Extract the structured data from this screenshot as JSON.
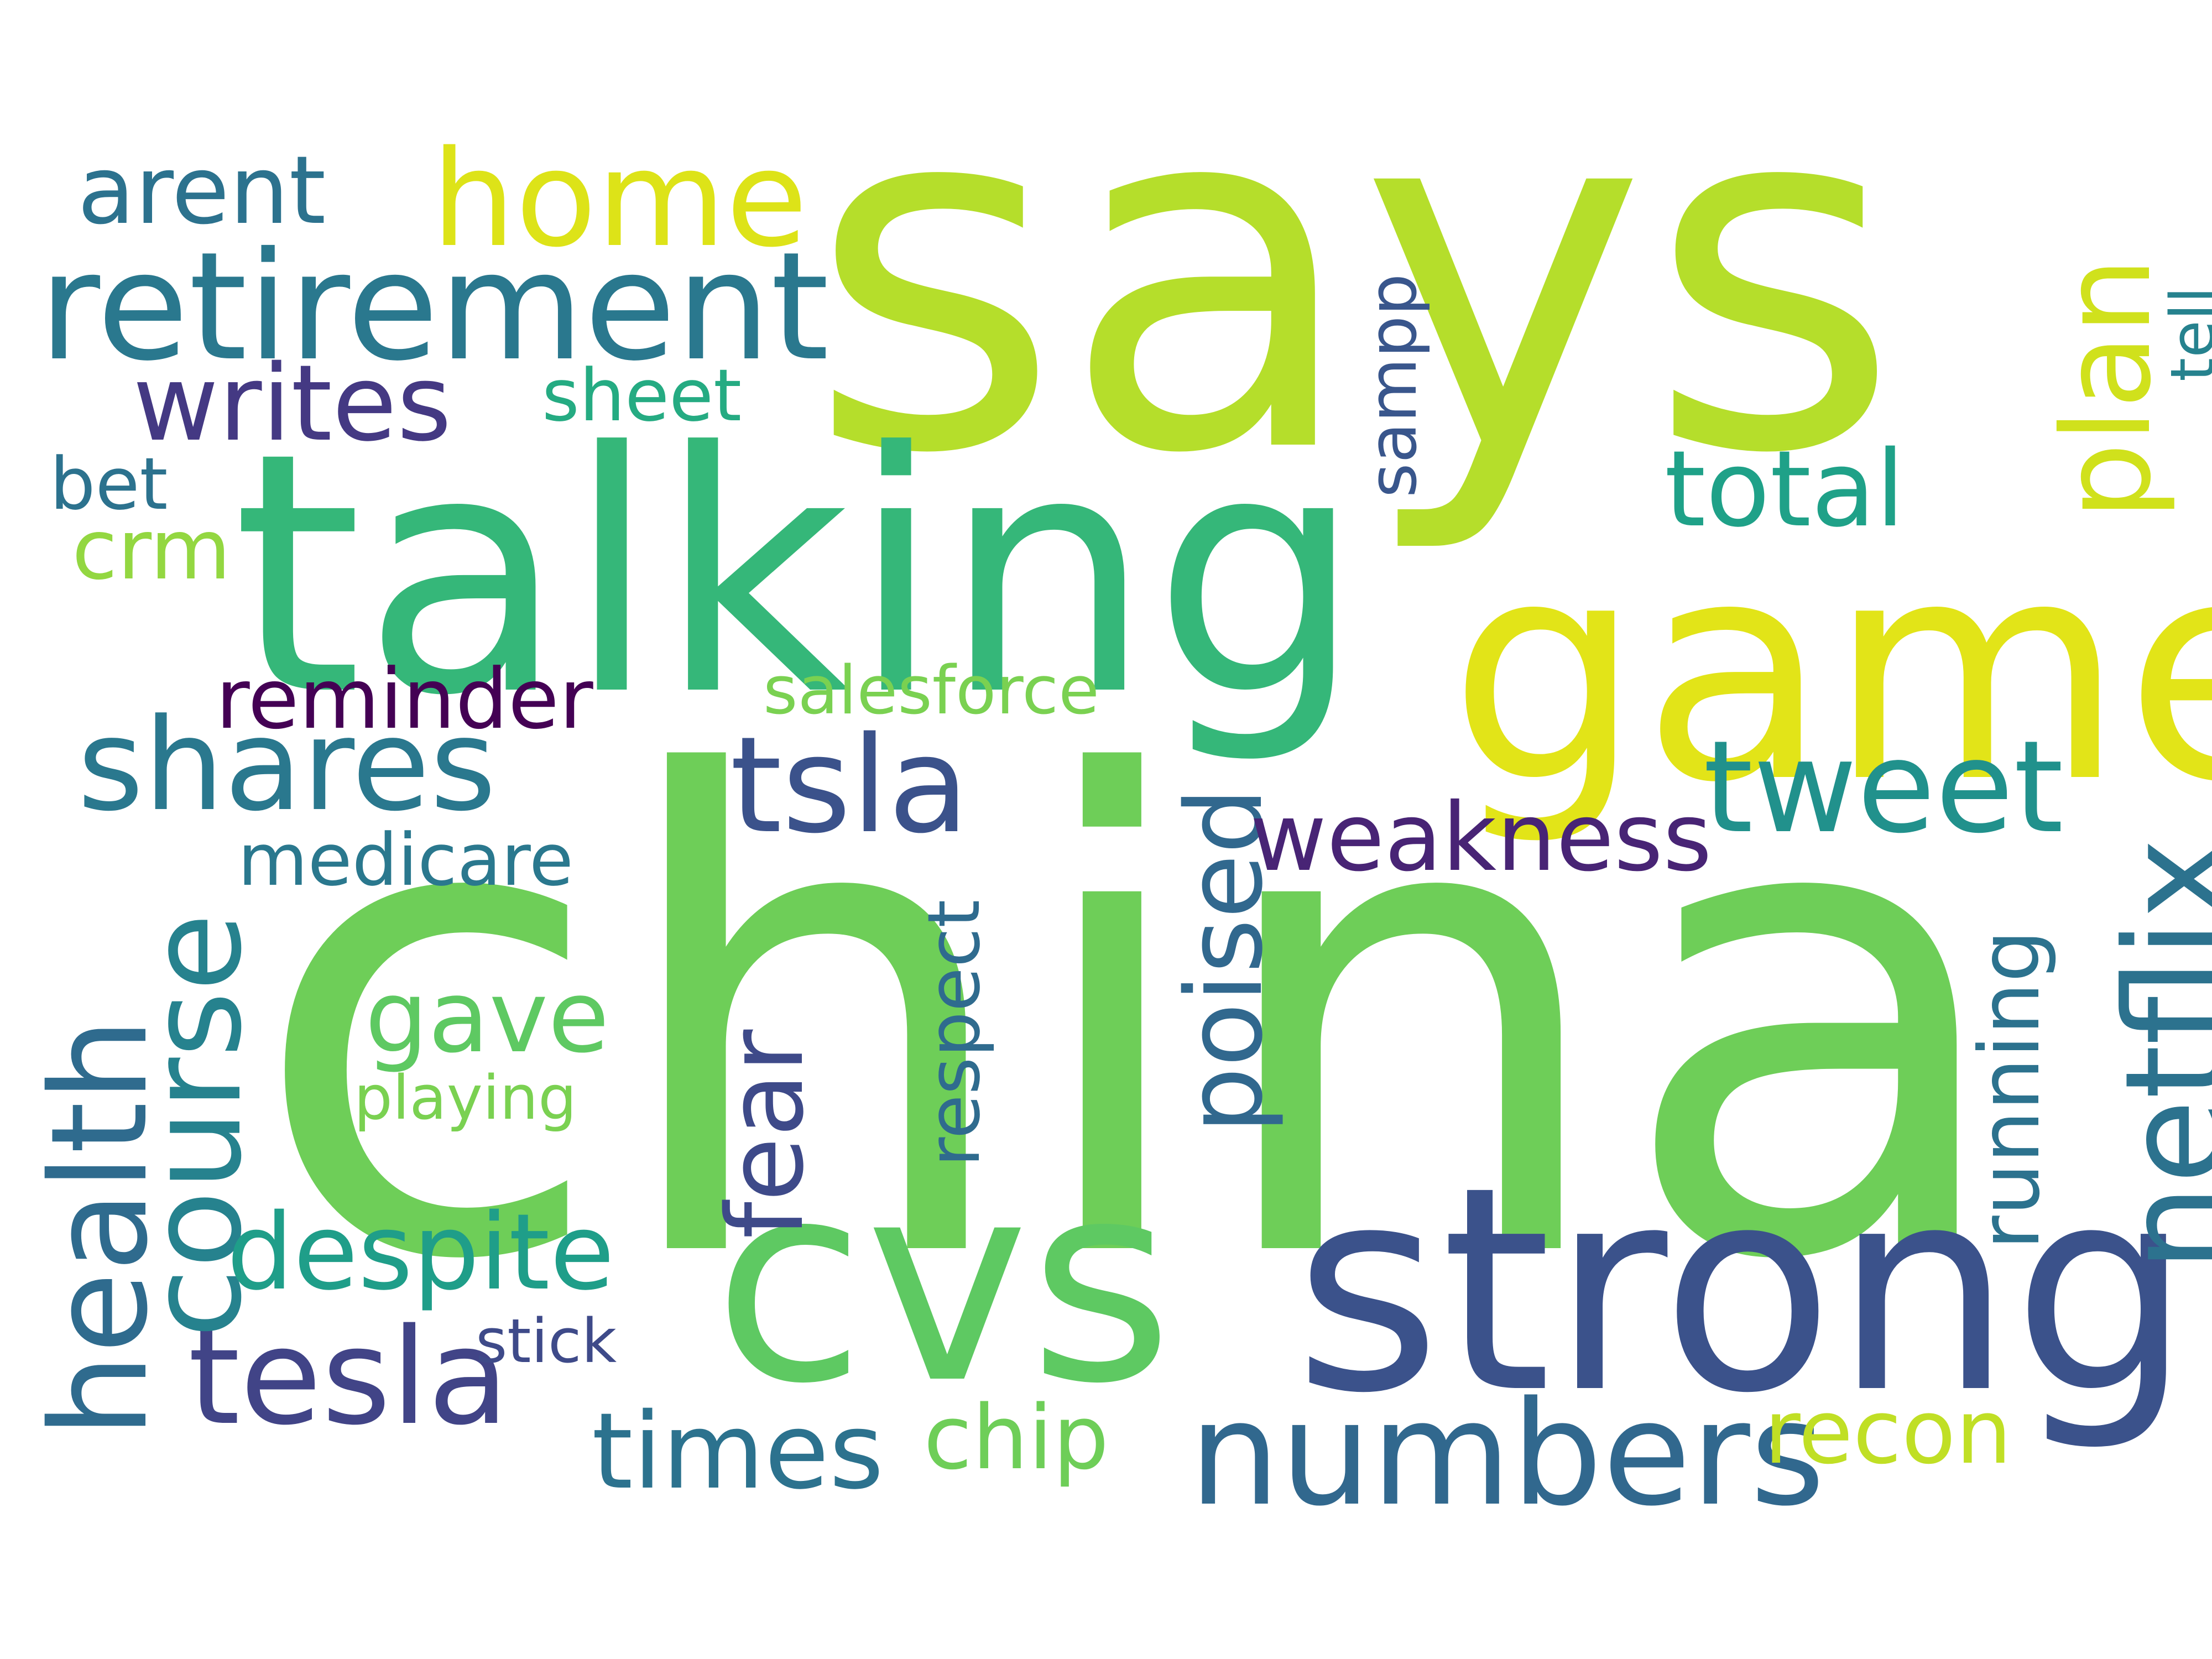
{
  "words": [
    {
      "text": "says",
      "color": "#b5de2b",
      "vertical": false
    },
    {
      "text": "china",
      "color": "#6ece58",
      "vertical": false
    },
    {
      "text": "talking",
      "color": "#35b779",
      "vertical": false
    },
    {
      "text": "game",
      "color": "#e2e418",
      "vertical": false
    },
    {
      "text": "strong",
      "color": "#3b528b",
      "vertical": false
    },
    {
      "text": "cvs",
      "color": "#5ec962",
      "vertical": false
    },
    {
      "text": "retirement",
      "color": "#2a788e",
      "vertical": false
    },
    {
      "text": "numbers",
      "color": "#31688e",
      "vertical": false
    },
    {
      "text": "netflix",
      "color": "#2c728e",
      "vertical": true
    },
    {
      "text": "home",
      "color": "#dde318",
      "vertical": false
    },
    {
      "text": "shares",
      "color": "#2a788e",
      "vertical": false
    },
    {
      "text": "tweet",
      "color": "#21918c",
      "vertical": false
    },
    {
      "text": "tsla",
      "color": "#3b528b",
      "vertical": false
    },
    {
      "text": "tesla",
      "color": "#414487",
      "vertical": false
    },
    {
      "text": "health",
      "color": "#2f6b8e",
      "vertical": true
    },
    {
      "text": "course",
      "color": "#26828e",
      "vertical": true
    },
    {
      "text": "plan",
      "color": "#d0e11c",
      "vertical": true
    },
    {
      "text": "writes",
      "color": "#443983",
      "vertical": false
    },
    {
      "text": "despite",
      "color": "#1f9e89",
      "vertical": false
    },
    {
      "text": "times",
      "color": "#2c728e",
      "vertical": false
    },
    {
      "text": "poised",
      "color": "#31688e",
      "vertical": true
    },
    {
      "text": "weakness",
      "color": "#482475",
      "vertical": false
    },
    {
      "text": "fear",
      "color": "#3e4a89",
      "vertical": true
    },
    {
      "text": "total",
      "color": "#1fa188",
      "vertical": false
    },
    {
      "text": "arent",
      "color": "#2c728e",
      "vertical": false
    },
    {
      "text": "reminder",
      "color": "#440154",
      "vertical": false
    },
    {
      "text": "gave",
      "color": "#5ec962",
      "vertical": false
    },
    {
      "text": "chip",
      "color": "#6ece58",
      "vertical": false
    },
    {
      "text": "recon",
      "color": "#c0df25",
      "vertical": false
    },
    {
      "text": "running",
      "color": "#2c728e",
      "vertical": true
    },
    {
      "text": "respect",
      "color": "#2f6b8e",
      "vertical": true
    },
    {
      "text": "crm",
      "color": "#93d741",
      "vertical": false
    },
    {
      "text": "sheet",
      "color": "#25ab82",
      "vertical": false
    },
    {
      "text": "medicare",
      "color": "#2a788e",
      "vertical": false
    },
    {
      "text": "salesforce",
      "color": "#7ad151",
      "vertical": false
    },
    {
      "text": "bet",
      "color": "#2c728e",
      "vertical": false
    },
    {
      "text": "sampp",
      "color": "#39568c",
      "vertical": true
    },
    {
      "text": "stick",
      "color": "#3e4a89",
      "vertical": false
    },
    {
      "text": "playing",
      "color": "#7ad151",
      "vertical": false
    },
    {
      "text": "tell",
      "color": "#26828e",
      "vertical": true
    }
  ]
}
